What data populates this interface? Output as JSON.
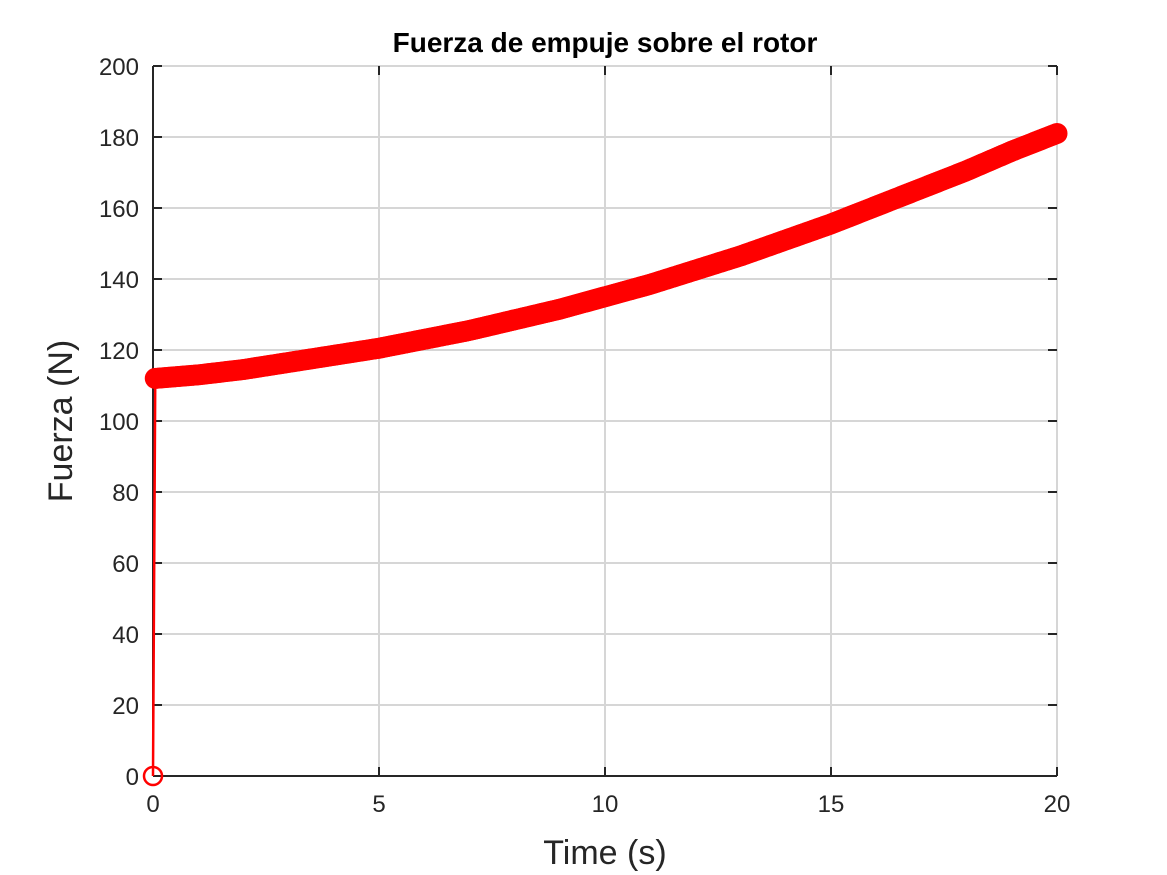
{
  "chart_data": {
    "type": "line",
    "title": "Fuerza de empuje sobre el rotor",
    "xlabel": "Time (s)",
    "ylabel": "Fuerza (N)",
    "xlim": [
      0,
      20
    ],
    "ylim": [
      0,
      200
    ],
    "xticks": [
      "0",
      "5",
      "10",
      "15",
      "20"
    ],
    "yticks": [
      "0",
      "20",
      "40",
      "60",
      "80",
      "100",
      "120",
      "140",
      "160",
      "180",
      "200"
    ],
    "grid": true,
    "box": true,
    "marker": "circle",
    "color": "#ff0000",
    "series": [
      {
        "x": [
          0,
          0.05,
          1,
          2,
          3,
          4,
          5,
          6,
          7,
          8,
          9,
          10,
          11,
          12,
          13,
          14,
          15,
          16,
          17,
          18,
          19,
          20
        ],
        "y": [
          0,
          112,
          113,
          114.5,
          116.5,
          118.5,
          120.5,
          123,
          125.5,
          128.5,
          131.5,
          135,
          138.5,
          142.5,
          146.5,
          151,
          155.5,
          160.5,
          165.5,
          170.5,
          176,
          181
        ]
      }
    ]
  }
}
